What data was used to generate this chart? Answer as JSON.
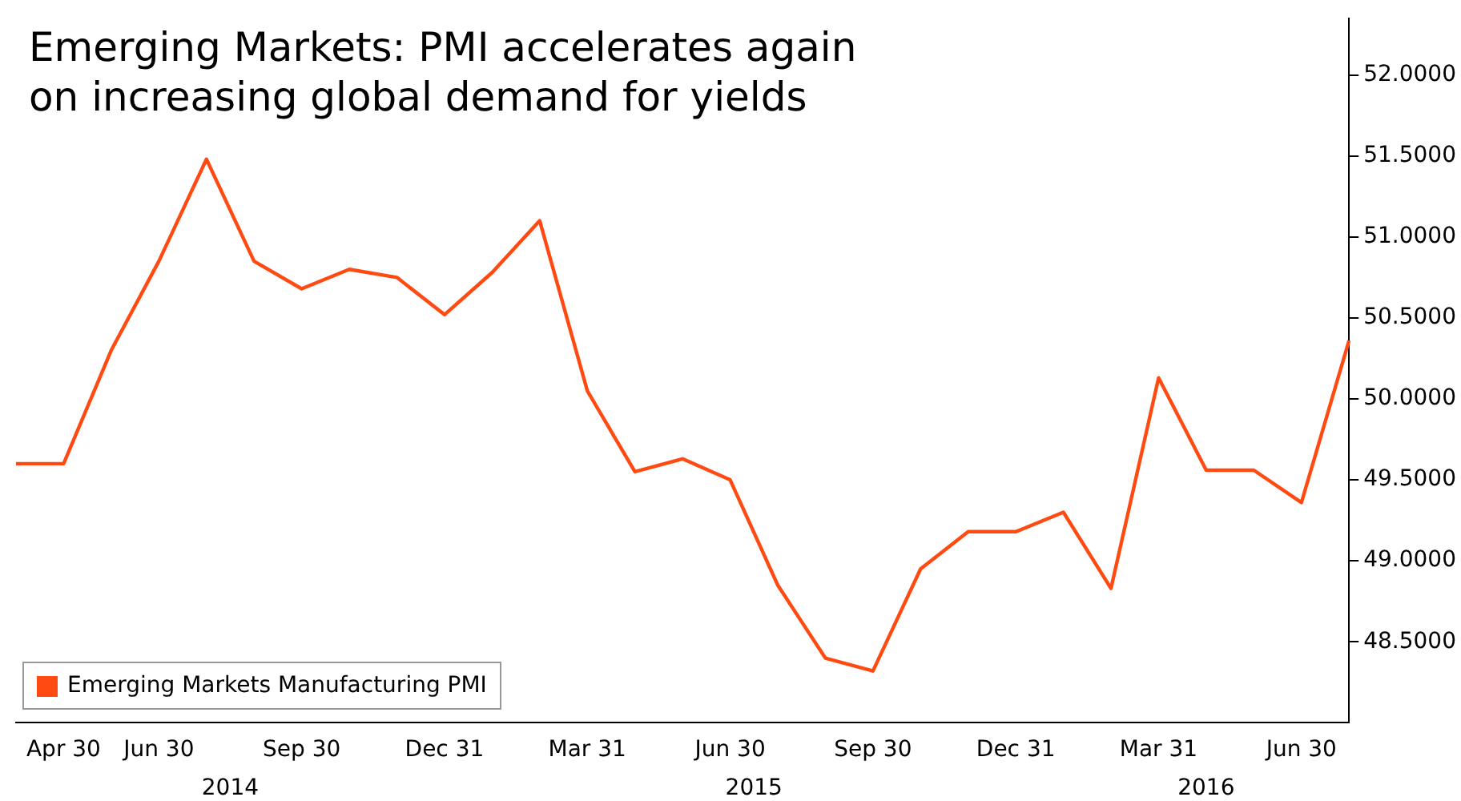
{
  "chart_data": {
    "type": "line",
    "title": "Emerging Markets: PMI accelerates again\non increasing global demand for yields",
    "categories": [
      null,
      "Apr 30",
      null,
      "Jun 30",
      null,
      null,
      "Sep 30",
      null,
      null,
      "Dec 31",
      null,
      null,
      "Mar 31",
      null,
      null,
      "Jun 30",
      null,
      null,
      "Sep 30",
      null,
      null,
      "Dec 31",
      null,
      null,
      "Mar 31",
      null,
      null,
      "Jun 30",
      null
    ],
    "series": [
      {
        "name": "Emerging Markets Manufacturing PMI",
        "color": "#ff4a12",
        "values": [
          49.6,
          49.6,
          50.3,
          50.85,
          51.48,
          50.85,
          50.68,
          50.8,
          50.75,
          50.52,
          50.78,
          51.1,
          50.05,
          49.55,
          49.63,
          49.5,
          48.85,
          48.4,
          48.32,
          48.95,
          49.18,
          49.18,
          49.3,
          48.83,
          50.13,
          49.56,
          49.56,
          49.36,
          50.36
        ]
      }
    ],
    "ylim": [
      48.0,
      52.35
    ],
    "yticks": [
      {
        "value": 48.5,
        "label": "48.5000"
      },
      {
        "value": 49,
        "label": "49.0000"
      },
      {
        "value": 49.5,
        "label": "49.5000"
      },
      {
        "value": 50,
        "label": "50.0000"
      },
      {
        "value": 50.5,
        "label": "50.5000"
      },
      {
        "value": 51,
        "label": "51.0000"
      },
      {
        "value": 51.5,
        "label": "51.5000"
      },
      {
        "value": 52,
        "label": "52.0000"
      }
    ],
    "annotations": [
      "2014",
      "2015",
      "2016"
    ],
    "grid": false,
    "legend": "bottom left",
    "marker": "none",
    "line_style": "solid"
  }
}
